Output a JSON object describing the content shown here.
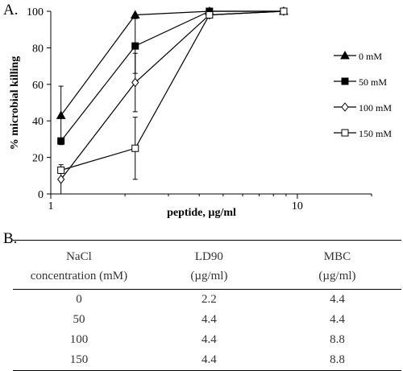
{
  "panel_a_label": "A.",
  "panel_b_label": "B.",
  "chart_data": {
    "type": "line",
    "xscale": "log",
    "xlim": [
      1,
      20
    ],
    "ylim": [
      0,
      100
    ],
    "xticks": [
      1,
      10
    ],
    "yticks": [
      0,
      20,
      40,
      60,
      80,
      100
    ],
    "xlabel": "peptide, µg/ml",
    "ylabel": "% microbial killing",
    "legend_position": "right",
    "grid": false,
    "series": [
      {
        "name": "0 mM",
        "marker": "triangle-filled",
        "x": [
          1.1,
          2.2,
          4.4,
          8.8
        ],
        "y": [
          43,
          98,
          100,
          100
        ],
        "err": [
          16,
          0,
          0,
          0
        ]
      },
      {
        "name": "50 mM",
        "marker": "square-filled",
        "x": [
          1.1,
          2.2,
          4.4,
          8.8
        ],
        "y": [
          29,
          81,
          100,
          100
        ],
        "err": [
          0,
          15,
          0,
          0
        ]
      },
      {
        "name": "100 mM",
        "marker": "diamond-open",
        "x": [
          1.1,
          2.2,
          4.4,
          8.8
        ],
        "y": [
          8,
          61,
          98,
          100
        ],
        "err": [
          8,
          16,
          0,
          0
        ]
      },
      {
        "name": "150 mM",
        "marker": "square-open",
        "x": [
          1.1,
          2.2,
          4.4,
          8.8
        ],
        "y": [
          13,
          25,
          98,
          100
        ],
        "err": [
          0,
          17,
          0,
          0
        ]
      }
    ]
  },
  "table": {
    "headers_row1": [
      "NaCl",
      "LD90",
      "MBC"
    ],
    "headers_row2": [
      "concentration (mM)",
      "(µg/ml)",
      "(µg/ml)"
    ],
    "rows": [
      [
        "0",
        "2.2",
        "4.4"
      ],
      [
        "50",
        "4.4",
        "4.4"
      ],
      [
        "100",
        "4.4",
        "8.8"
      ],
      [
        "150",
        "4.4",
        "8.8"
      ]
    ]
  }
}
